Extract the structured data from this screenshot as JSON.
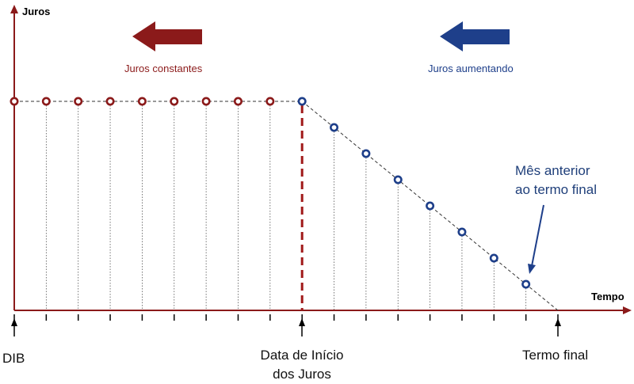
{
  "axes": {
    "y_title": "Juros",
    "x_title": "Tempo"
  },
  "arrows": {
    "constant": {
      "caption": "Juros constantes",
      "color": "#8b1a1a"
    },
    "increasing": {
      "caption": "Juros aumentando",
      "color": "#1e3f8a"
    }
  },
  "annotation": {
    "line1": "Mês anterior",
    "line2": "ao termo final"
  },
  "markers": {
    "start": "DIB",
    "middle_line1": "Data de Início",
    "middle_line2": "dos Juros",
    "end": "Termo final"
  },
  "colors": {
    "axis": "#8b1a1a",
    "constant_points": "#8b1a1a",
    "increasing_points": "#1e3f8a",
    "boundary_line": "#a01818"
  },
  "chart_data": {
    "type": "line",
    "xlabel": "Tempo",
    "ylabel": "Juros",
    "months_total": 17,
    "boundary_month": 9,
    "constant_level": 1,
    "constant_months": [
      0,
      1,
      2,
      3,
      4,
      5,
      6,
      7,
      8
    ],
    "increasing_months": [
      9,
      10,
      11,
      12,
      13,
      14,
      15,
      16
    ]
  }
}
